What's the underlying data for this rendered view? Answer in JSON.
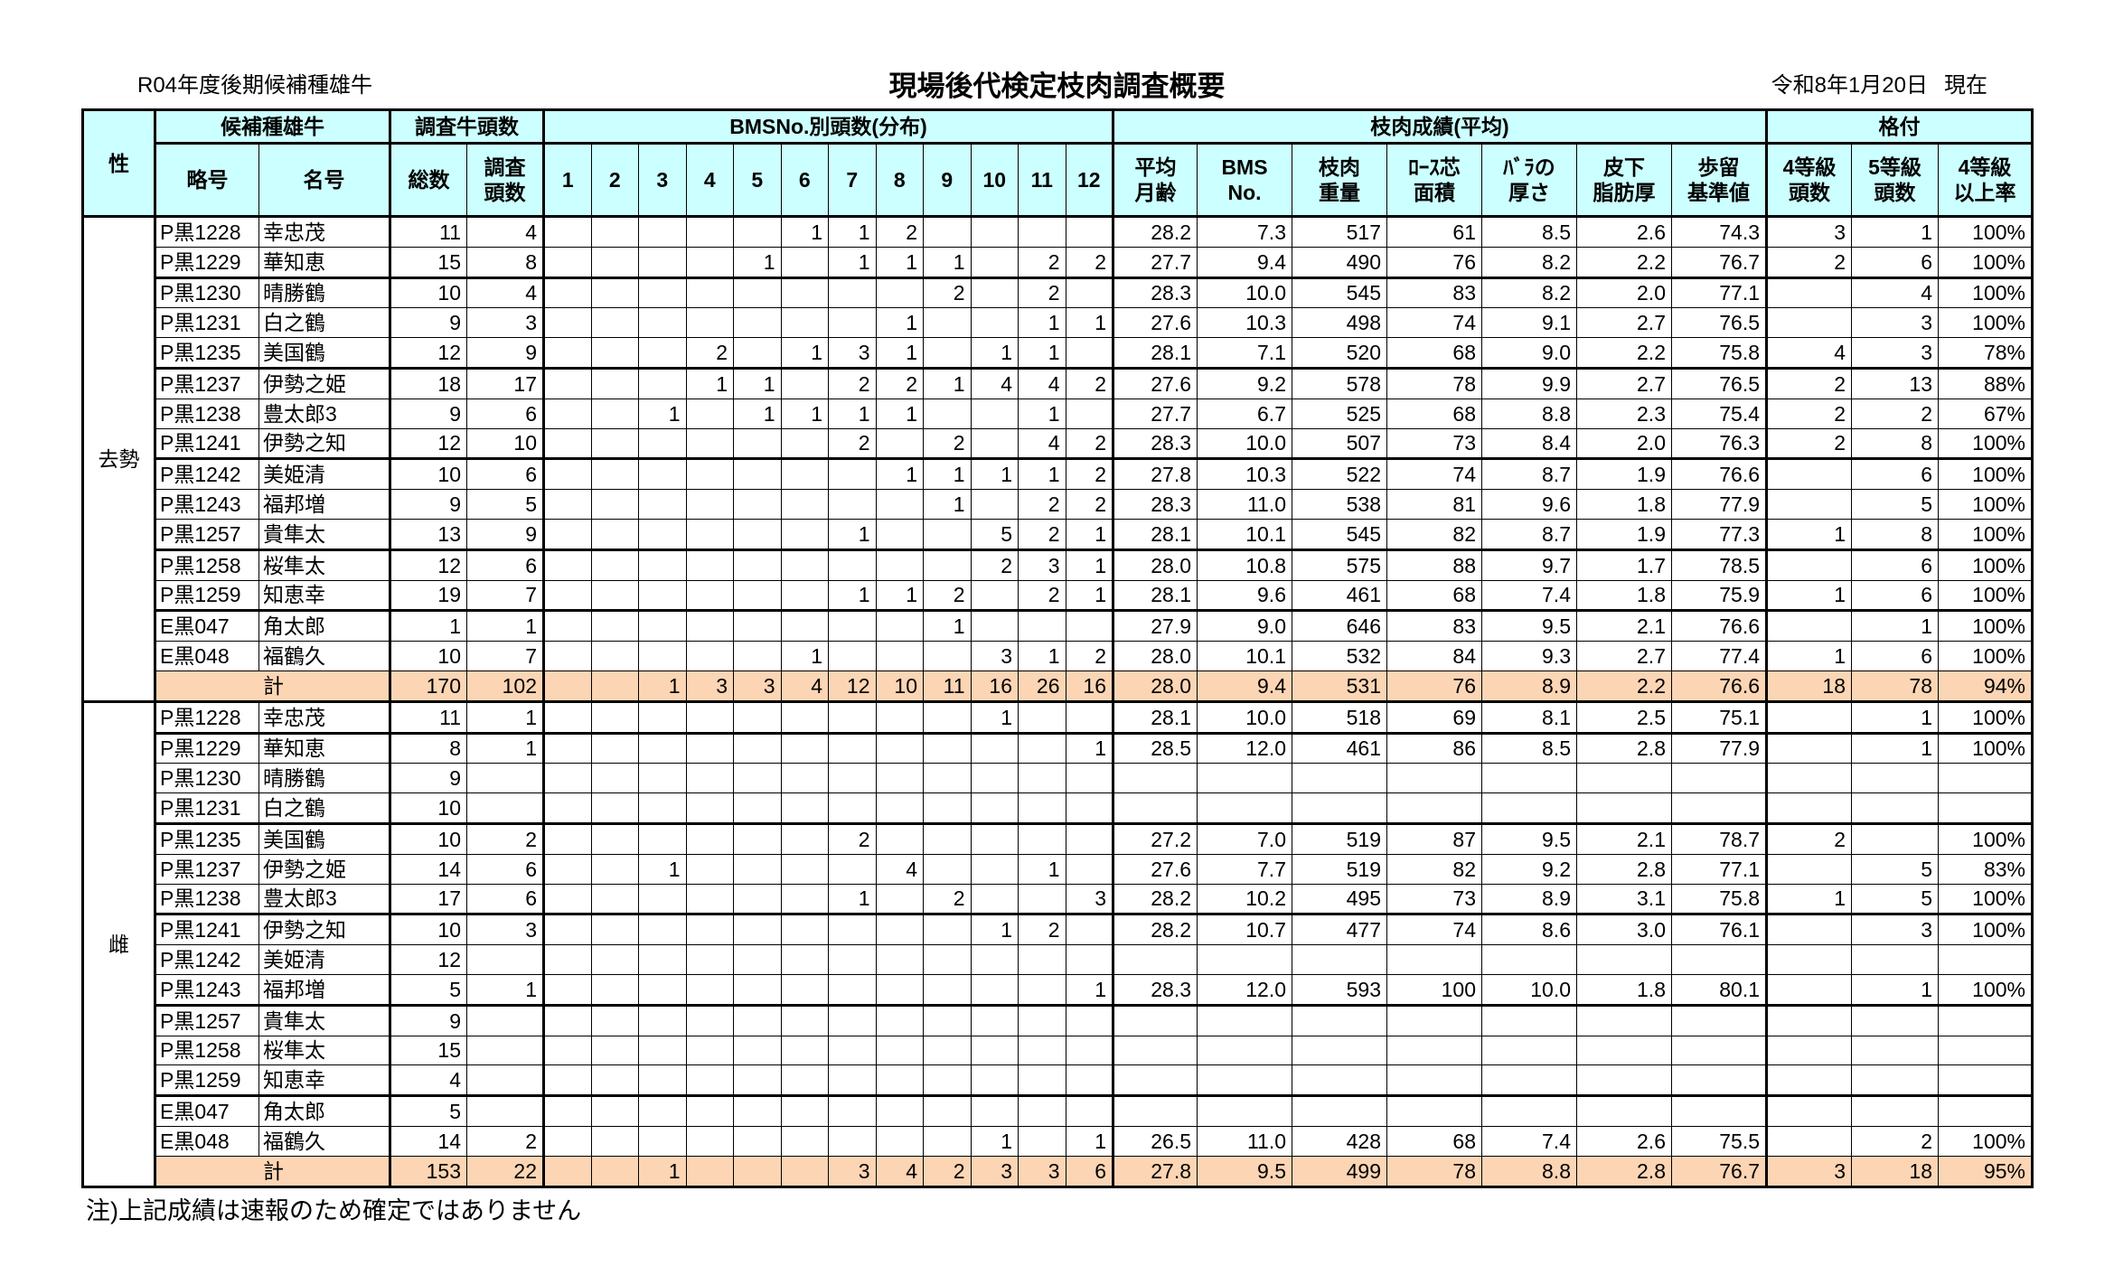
{
  "header": {
    "subtitle": "R04年度後期候補種雄牛",
    "title": "現場後代検定枝肉調査概要",
    "as_of_date": "令和8年1月20日",
    "as_of_suffix": "現在"
  },
  "columns": {
    "group": [
      "性",
      "候補種雄牛",
      "調査牛頭数",
      "BMSNo.別頭数(分布)",
      "枝肉成績(平均)",
      "格付"
    ],
    "sub": [
      "略号",
      "名号",
      "総数",
      "調査\n頭数",
      "1",
      "2",
      "3",
      "4",
      "5",
      "6",
      "7",
      "8",
      "9",
      "10",
      "11",
      "12",
      "平均\n月齢",
      "BMS\nNo.",
      "枝肉\n重量",
      "ﾛｰｽ芯\n面積",
      "ﾊﾞﾗの\n厚さ",
      "皮下\n脂肪厚",
      "歩留\n基準値",
      "4等級\n頭数",
      "5等級\n頭数",
      "4等級\n以上率"
    ]
  },
  "colors": {
    "header_bg": "#ccffff",
    "total_bg": "#fcd5b4"
  },
  "sections": [
    {
      "sex": "去勢",
      "rows": [
        [
          "P黒1228",
          "幸忠茂",
          "11",
          "4",
          "",
          "",
          "",
          "",
          "",
          "1",
          "1",
          "2",
          "",
          "",
          "",
          "",
          "28.2",
          "7.3",
          "517",
          "61",
          "8.5",
          "2.6",
          "74.3",
          "3",
          "1",
          "100%"
        ],
        [
          "P黒1229",
          "華知恵",
          "15",
          "8",
          "",
          "",
          "",
          "",
          "1",
          "",
          "1",
          "1",
          "1",
          "",
          "2",
          "2",
          "27.7",
          "9.4",
          "490",
          "76",
          "8.2",
          "2.2",
          "76.7",
          "2",
          "6",
          "100%"
        ],
        [
          "P黒1230",
          "晴勝鶴",
          "10",
          "4",
          "",
          "",
          "",
          "",
          "",
          "",
          "",
          "",
          "2",
          "",
          "2",
          "",
          "28.3",
          "10.0",
          "545",
          "83",
          "8.2",
          "2.0",
          "77.1",
          "",
          "4",
          "100%"
        ],
        [
          "P黒1231",
          "白之鶴",
          "9",
          "3",
          "",
          "",
          "",
          "",
          "",
          "",
          "",
          "1",
          "",
          "",
          "1",
          "1",
          "27.6",
          "10.3",
          "498",
          "74",
          "9.1",
          "2.7",
          "76.5",
          "",
          "3",
          "100%"
        ],
        [
          "P黒1235",
          "美国鶴",
          "12",
          "9",
          "",
          "",
          "",
          "2",
          "",
          "1",
          "3",
          "1",
          "",
          "1",
          "1",
          "",
          "28.1",
          "7.1",
          "520",
          "68",
          "9.0",
          "2.2",
          "75.8",
          "4",
          "3",
          "78%"
        ],
        [
          "P黒1237",
          "伊勢之姫",
          "18",
          "17",
          "",
          "",
          "",
          "1",
          "1",
          "",
          "2",
          "2",
          "1",
          "4",
          "4",
          "2",
          "27.6",
          "9.2",
          "578",
          "78",
          "9.9",
          "2.7",
          "76.5",
          "2",
          "13",
          "88%"
        ],
        [
          "P黒1238",
          "豊太郎3",
          "9",
          "6",
          "",
          "",
          "1",
          "",
          "1",
          "1",
          "1",
          "1",
          "",
          "",
          "1",
          "",
          "27.7",
          "6.7",
          "525",
          "68",
          "8.8",
          "2.3",
          "75.4",
          "2",
          "2",
          "67%"
        ],
        [
          "P黒1241",
          "伊勢之知",
          "12",
          "10",
          "",
          "",
          "",
          "",
          "",
          "",
          "2",
          "",
          "2",
          "",
          "4",
          "2",
          "28.3",
          "10.0",
          "507",
          "73",
          "8.4",
          "2.0",
          "76.3",
          "2",
          "8",
          "100%"
        ],
        [
          "P黒1242",
          "美姫清",
          "10",
          "6",
          "",
          "",
          "",
          "",
          "",
          "",
          "",
          "1",
          "1",
          "1",
          "1",
          "2",
          "27.8",
          "10.3",
          "522",
          "74",
          "8.7",
          "1.9",
          "76.6",
          "",
          "6",
          "100%"
        ],
        [
          "P黒1243",
          "福邦増",
          "9",
          "5",
          "",
          "",
          "",
          "",
          "",
          "",
          "",
          "",
          "1",
          "",
          "2",
          "2",
          "28.3",
          "11.0",
          "538",
          "81",
          "9.6",
          "1.8",
          "77.9",
          "",
          "5",
          "100%"
        ],
        [
          "P黒1257",
          "貴隼太",
          "13",
          "9",
          "",
          "",
          "",
          "",
          "",
          "",
          "1",
          "",
          "",
          "5",
          "2",
          "1",
          "28.1",
          "10.1",
          "545",
          "82",
          "8.7",
          "1.9",
          "77.3",
          "1",
          "8",
          "100%"
        ],
        [
          "P黒1258",
          "桜隼太",
          "12",
          "6",
          "",
          "",
          "",
          "",
          "",
          "",
          "",
          "",
          "",
          "2",
          "3",
          "1",
          "28.0",
          "10.8",
          "575",
          "88",
          "9.7",
          "1.7",
          "78.5",
          "",
          "6",
          "100%"
        ],
        [
          "P黒1259",
          "知恵幸",
          "19",
          "7",
          "",
          "",
          "",
          "",
          "",
          "",
          "1",
          "1",
          "2",
          "",
          "2",
          "1",
          "28.1",
          "9.6",
          "461",
          "68",
          "7.4",
          "1.8",
          "75.9",
          "1",
          "6",
          "100%"
        ],
        [
          "E黒047",
          "角太郎",
          "1",
          "1",
          "",
          "",
          "",
          "",
          "",
          "",
          "",
          "",
          "1",
          "",
          "",
          "",
          "27.9",
          "9.0",
          "646",
          "83",
          "9.5",
          "2.1",
          "76.6",
          "",
          "1",
          "100%"
        ],
        [
          "E黒048",
          "福鶴久",
          "10",
          "7",
          "",
          "",
          "",
          "",
          "",
          "1",
          "",
          "",
          "",
          "3",
          "1",
          "2",
          "28.0",
          "10.1",
          "532",
          "84",
          "9.3",
          "2.7",
          "77.4",
          "1",
          "6",
          "100%"
        ]
      ],
      "total": [
        "計",
        "170",
        "102",
        "",
        "",
        "1",
        "3",
        "3",
        "4",
        "12",
        "10",
        "11",
        "16",
        "26",
        "16",
        "28.0",
        "9.4",
        "531",
        "76",
        "8.9",
        "2.2",
        "76.6",
        "18",
        "78",
        "94%"
      ]
    },
    {
      "sex": "雌",
      "rows": [
        [
          "P黒1228",
          "幸忠茂",
          "11",
          "1",
          "",
          "",
          "",
          "",
          "",
          "",
          "",
          "",
          "",
          "1",
          "",
          "",
          "28.1",
          "10.0",
          "518",
          "69",
          "8.1",
          "2.5",
          "75.1",
          "",
          "1",
          "100%"
        ],
        [
          "P黒1229",
          "華知恵",
          "8",
          "1",
          "",
          "",
          "",
          "",
          "",
          "",
          "",
          "",
          "",
          "",
          "",
          "1",
          "28.5",
          "12.0",
          "461",
          "86",
          "8.5",
          "2.8",
          "77.9",
          "",
          "1",
          "100%"
        ],
        [
          "P黒1230",
          "晴勝鶴",
          "9",
          "",
          "",
          "",
          "",
          "",
          "",
          "",
          "",
          "",
          "",
          "",
          "",
          "",
          "",
          "",
          "",
          "",
          "",
          "",
          "",
          "",
          "",
          ""
        ],
        [
          "P黒1231",
          "白之鶴",
          "10",
          "",
          "",
          "",
          "",
          "",
          "",
          "",
          "",
          "",
          "",
          "",
          "",
          "",
          "",
          "",
          "",
          "",
          "",
          "",
          "",
          "",
          "",
          ""
        ],
        [
          "P黒1235",
          "美国鶴",
          "10",
          "2",
          "",
          "",
          "",
          "",
          "",
          "",
          "2",
          "",
          "",
          "",
          "",
          "",
          "27.2",
          "7.0",
          "519",
          "87",
          "9.5",
          "2.1",
          "78.7",
          "2",
          "",
          "100%"
        ],
        [
          "P黒1237",
          "伊勢之姫",
          "14",
          "6",
          "",
          "",
          "1",
          "",
          "",
          "",
          "",
          "4",
          "",
          "",
          "1",
          "",
          "27.6",
          "7.7",
          "519",
          "82",
          "9.2",
          "2.8",
          "77.1",
          "",
          "5",
          "83%"
        ],
        [
          "P黒1238",
          "豊太郎3",
          "17",
          "6",
          "",
          "",
          "",
          "",
          "",
          "",
          "1",
          "",
          "2",
          "",
          "",
          "3",
          "28.2",
          "10.2",
          "495",
          "73",
          "8.9",
          "3.1",
          "75.8",
          "1",
          "5",
          "100%"
        ],
        [
          "P黒1241",
          "伊勢之知",
          "10",
          "3",
          "",
          "",
          "",
          "",
          "",
          "",
          "",
          "",
          "",
          "1",
          "2",
          "",
          "28.2",
          "10.7",
          "477",
          "74",
          "8.6",
          "3.0",
          "76.1",
          "",
          "3",
          "100%"
        ],
        [
          "P黒1242",
          "美姫清",
          "12",
          "",
          "",
          "",
          "",
          "",
          "",
          "",
          "",
          "",
          "",
          "",
          "",
          "",
          "",
          "",
          "",
          "",
          "",
          "",
          "",
          "",
          "",
          ""
        ],
        [
          "P黒1243",
          "福邦増",
          "5",
          "1",
          "",
          "",
          "",
          "",
          "",
          "",
          "",
          "",
          "",
          "",
          "",
          "1",
          "28.3",
          "12.0",
          "593",
          "100",
          "10.0",
          "1.8",
          "80.1",
          "",
          "1",
          "100%"
        ],
        [
          "P黒1257",
          "貴隼太",
          "9",
          "",
          "",
          "",
          "",
          "",
          "",
          "",
          "",
          "",
          "",
          "",
          "",
          "",
          "",
          "",
          "",
          "",
          "",
          "",
          "",
          "",
          "",
          ""
        ],
        [
          "P黒1258",
          "桜隼太",
          "15",
          "",
          "",
          "",
          "",
          "",
          "",
          "",
          "",
          "",
          "",
          "",
          "",
          "",
          "",
          "",
          "",
          "",
          "",
          "",
          "",
          "",
          "",
          ""
        ],
        [
          "P黒1259",
          "知恵幸",
          "4",
          "",
          "",
          "",
          "",
          "",
          "",
          "",
          "",
          "",
          "",
          "",
          "",
          "",
          "",
          "",
          "",
          "",
          "",
          "",
          "",
          "",
          "",
          ""
        ],
        [
          "E黒047",
          "角太郎",
          "5",
          "",
          "",
          "",
          "",
          "",
          "",
          "",
          "",
          "",
          "",
          "",
          "",
          "",
          "",
          "",
          "",
          "",
          "",
          "",
          "",
          "",
          "",
          ""
        ],
        [
          "E黒048",
          "福鶴久",
          "14",
          "2",
          "",
          "",
          "",
          "",
          "",
          "",
          "",
          "",
          "",
          "1",
          "",
          "1",
          "26.5",
          "11.0",
          "428",
          "68",
          "7.4",
          "2.6",
          "75.5",
          "",
          "2",
          "100%"
        ]
      ],
      "total": [
        "計",
        "153",
        "22",
        "",
        "",
        "1",
        "",
        "",
        "",
        "3",
        "4",
        "2",
        "3",
        "3",
        "6",
        "27.8",
        "9.5",
        "499",
        "78",
        "8.8",
        "2.8",
        "76.7",
        "3",
        "18",
        "95%"
      ]
    }
  ],
  "footnote": "注)上記成績は速報のため確定ではありません"
}
